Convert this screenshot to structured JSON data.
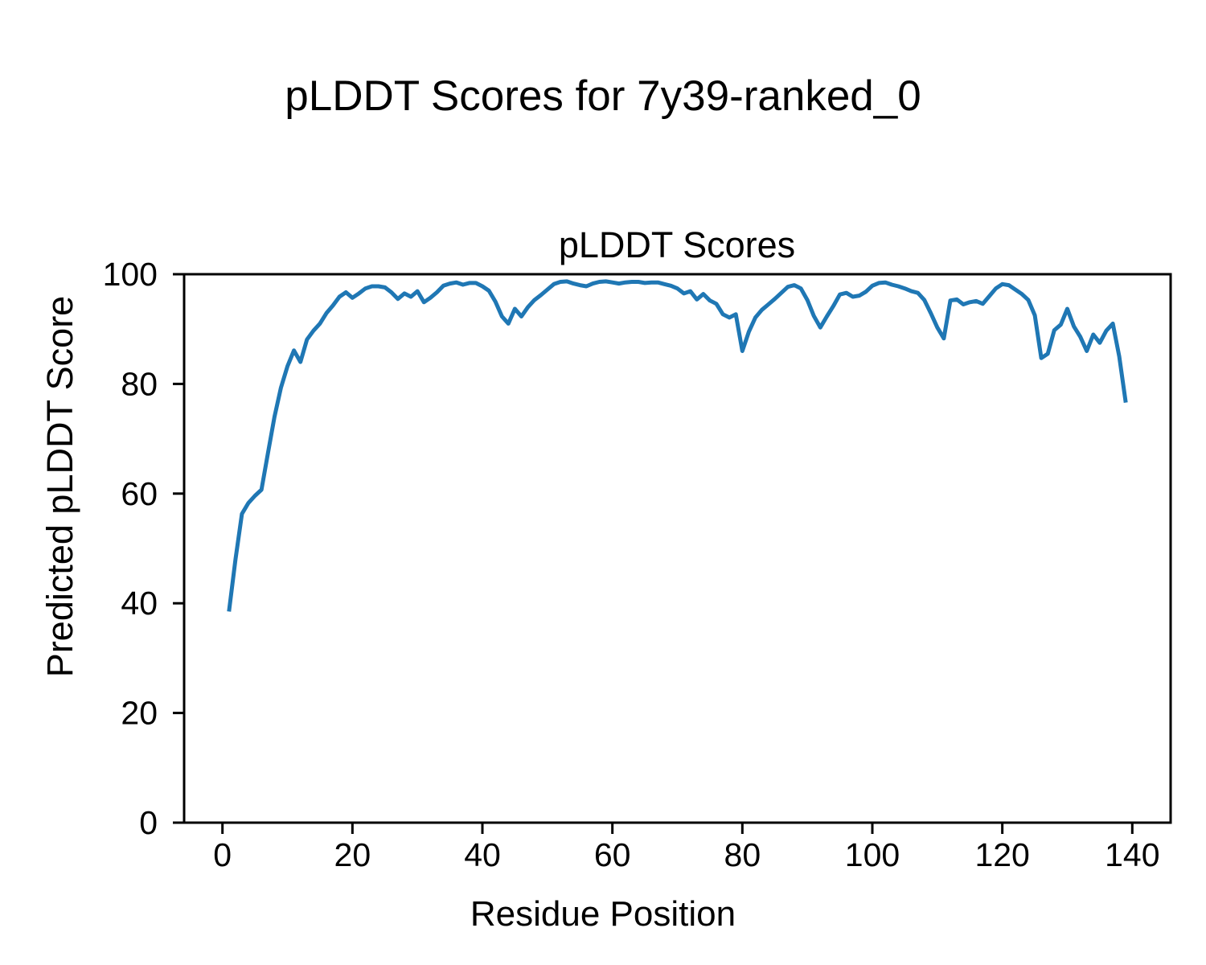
{
  "figure": {
    "suptitle": "pLDDT Scores for 7y39-ranked_0",
    "axes_title": "pLDDT Scores",
    "xlabel": "Residue Position",
    "ylabel": "Predicted pLDDT Score"
  },
  "chart_data": {
    "type": "line",
    "title": "pLDDT Scores",
    "suptitle": "pLDDT Scores for 7y39-ranked_0",
    "xlabel": "Residue Position",
    "ylabel": "Predicted pLDDT Score",
    "series_name": "pLDDT",
    "line_color": "#1f77b4",
    "line_width": 5,
    "grid": false,
    "legend": null,
    "x_start": 1,
    "x_end": 139,
    "xlim": [
      -5.9,
      145.9
    ],
    "ylim": [
      0,
      100
    ],
    "x_ticks": [
      0,
      20,
      40,
      60,
      80,
      100,
      120,
      140
    ],
    "y_ticks": [
      0,
      20,
      40,
      60,
      80,
      100
    ],
    "values": [
      38.5,
      48.0,
      56.3,
      58.3,
      59.6,
      60.7,
      67.4,
      74.0,
      79.3,
      83.2,
      86.1,
      84.0,
      88.1,
      89.7,
      91.0,
      92.9,
      94.3,
      95.9,
      96.7,
      95.7,
      96.5,
      97.4,
      97.8,
      97.8,
      97.6,
      96.7,
      95.5,
      96.5,
      95.9,
      96.9,
      94.9,
      95.7,
      96.7,
      97.9,
      98.3,
      98.5,
      98.1,
      98.4,
      98.4,
      97.8,
      97.0,
      95.0,
      92.3,
      91.0,
      93.7,
      92.3,
      94.0,
      95.3,
      96.2,
      97.2,
      98.2,
      98.6,
      98.7,
      98.3,
      98.0,
      97.8,
      98.3,
      98.6,
      98.7,
      98.5,
      98.3,
      98.5,
      98.6,
      98.6,
      98.4,
      98.5,
      98.5,
      98.2,
      97.9,
      97.4,
      96.5,
      96.9,
      95.4,
      96.4,
      95.2,
      94.6,
      92.7,
      92.1,
      92.7,
      86.0,
      89.5,
      92.1,
      93.5,
      94.5,
      95.5,
      96.6,
      97.7,
      98.0,
      97.4,
      95.3,
      92.4,
      90.3,
      92.3,
      94.2,
      96.3,
      96.6,
      95.9,
      96.1,
      96.8,
      97.9,
      98.4,
      98.5,
      98.1,
      97.8,
      97.4,
      96.9,
      96.6,
      95.3,
      92.9,
      90.3,
      88.3,
      95.2,
      95.4,
      94.5,
      94.9,
      95.1,
      94.6,
      96.0,
      97.4,
      98.2,
      98.0,
      97.2,
      96.4,
      95.3,
      92.5,
      84.7,
      85.5,
      89.8,
      90.8,
      93.7,
      90.5,
      88.6,
      86.0,
      89.0,
      87.5,
      89.7,
      91.0,
      85.0,
      76.6
    ]
  }
}
